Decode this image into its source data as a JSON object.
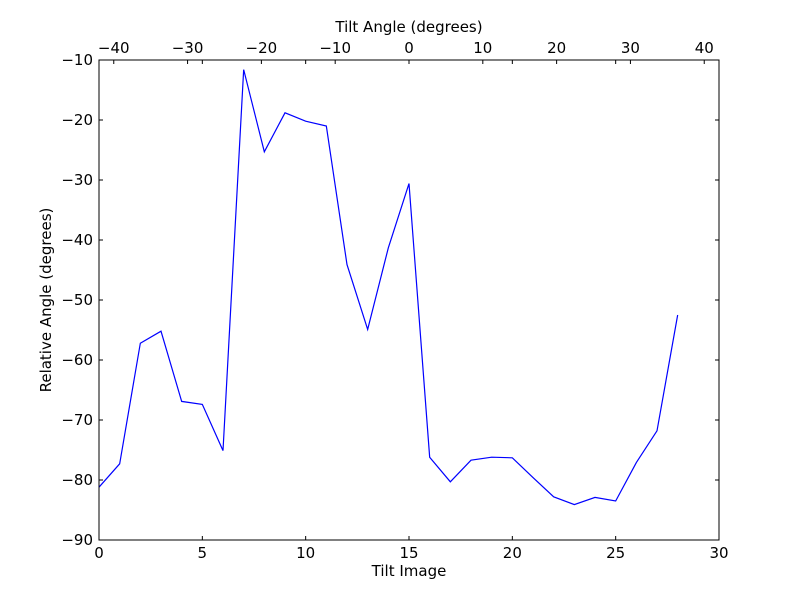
{
  "chart_data": {
    "type": "line",
    "title": "",
    "xlabel": "Tilt Image",
    "ylabel": "Relative Angle (degrees)",
    "secondary_xlabel": "Tilt Angle (degrees)",
    "xlim": [
      0,
      30
    ],
    "ylim": [
      -90,
      -10
    ],
    "secondary_xlim": [
      -42,
      42
    ],
    "x_ticks": [
      0,
      5,
      10,
      15,
      20,
      25,
      30
    ],
    "y_ticks": [
      -90,
      -80,
      -70,
      -60,
      -50,
      -40,
      -30,
      -20,
      -10
    ],
    "secondary_x_ticks": [
      -40,
      -30,
      -20,
      -10,
      0,
      10,
      20,
      30,
      40
    ],
    "x_tick_labels": [
      "0",
      "5",
      "10",
      "15",
      "20",
      "25",
      "30"
    ],
    "y_tick_labels": [
      "−90",
      "−80",
      "−70",
      "−60",
      "−50",
      "−40",
      "−30",
      "−20",
      "−10"
    ],
    "secondary_x_tick_labels": [
      "−40",
      "−30",
      "−20",
      "−10",
      "0",
      "10",
      "20",
      "30",
      "40"
    ],
    "grid": false,
    "legend": "none",
    "series": [
      {
        "color": "#0000ff",
        "x": [
          0,
          1,
          2,
          3,
          4,
          5,
          6,
          7,
          8,
          9,
          10,
          11,
          12,
          13,
          14,
          15,
          16,
          17,
          18,
          19,
          20,
          21,
          22,
          23,
          24,
          25,
          26,
          27,
          28
        ],
        "y": [
          -81.2,
          -77.3,
          -57.2,
          -55.2,
          -66.9,
          -67.4,
          -75.1,
          -11.6,
          -25.3,
          -18.8,
          -20.2,
          -21.0,
          -44.1,
          -54.9,
          -41.3,
          -30.6,
          -76.2,
          -80.3,
          -76.7,
          -76.2,
          -76.3,
          -79.6,
          -82.8,
          -84.1,
          -82.9,
          -83.5,
          -77.1,
          -71.8,
          -52.5
        ]
      }
    ]
  }
}
